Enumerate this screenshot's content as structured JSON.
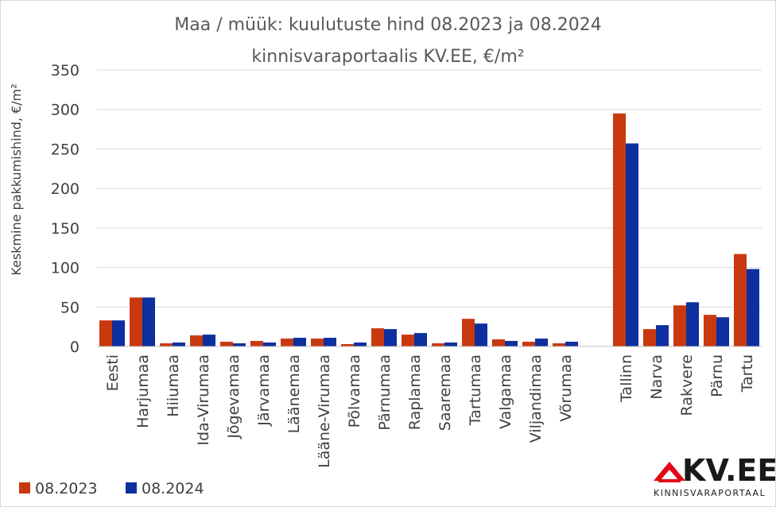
{
  "chart_data": {
    "type": "bar",
    "title": [
      "Maa / müük: kuulutuste hind 08.2023 ja 08.2024",
      "kinnisvaraportaalis KV.EE, €/m²"
    ],
    "ylabel": "Keskmine pakkumishind, €/m²",
    "xlabel": "",
    "ylim": [
      0,
      350
    ],
    "yticks": [
      0,
      50,
      100,
      150,
      200,
      250,
      300,
      350
    ],
    "grid": true,
    "legend_position": "bottom-left",
    "categories": [
      "Eesti",
      "Harjumaa",
      "Hiiumaa",
      "Ida-Virumaa",
      "Jõgevamaa",
      "Järvamaa",
      "Läänemaa",
      "Lääne-Virumaa",
      "Põlvamaa",
      "Pärnumaa",
      "Raplamaa",
      "Saaremaa",
      "Tartumaa",
      "Valgamaa",
      "Viljandimaa",
      "Võrumaa",
      "",
      "Tallinn",
      "Narva",
      "Rakvere",
      "Pärnu",
      "Tartu"
    ],
    "series": [
      {
        "name": "08.2023",
        "color": "#c8390f",
        "values": [
          33,
          62,
          4,
          14,
          6,
          7,
          10,
          10,
          3,
          23,
          15,
          4,
          35,
          9,
          6,
          4,
          null,
          295,
          22,
          52,
          40,
          117
        ]
      },
      {
        "name": "08.2024",
        "color": "#0d2f9f",
        "values": [
          33,
          62,
          5,
          15,
          4,
          5,
          11,
          11,
          5,
          22,
          17,
          5,
          29,
          7,
          10,
          6,
          null,
          257,
          27,
          56,
          37,
          98
        ]
      }
    ]
  },
  "logo": {
    "text": "KV.EE",
    "subtitle": "KINNISVARAPORTAAL",
    "color": "#e30613"
  }
}
